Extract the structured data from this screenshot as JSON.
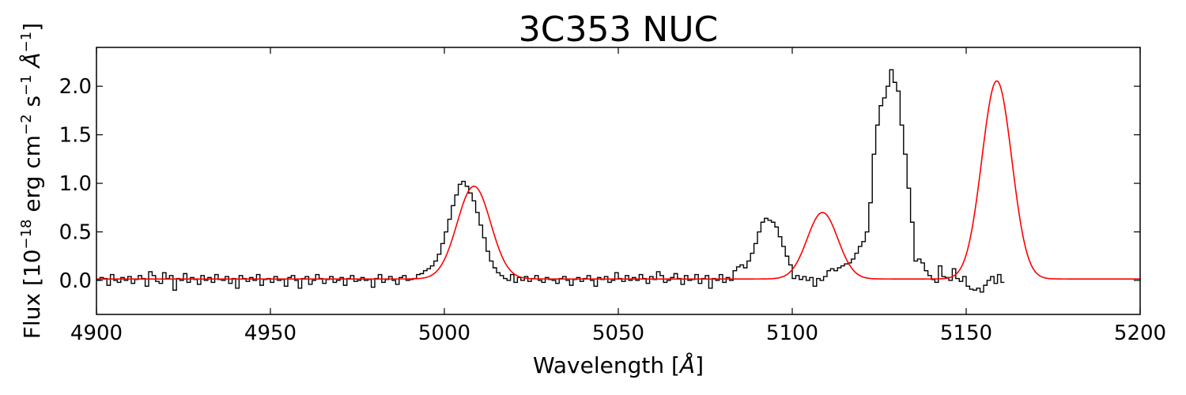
{
  "chart_data": {
    "type": "line",
    "title": "3C353 NUC",
    "xlabel": {
      "pre": "Wavelength [",
      "unit": "Å",
      "post": "]"
    },
    "ylabel": {
      "pre": "Flux [10",
      "exp1": "−18",
      "mid1": " erg cm",
      "exp2": "−2",
      "mid2": " s",
      "exp3": "−1",
      "unit": " Å",
      "exp4": "−1",
      "post": "]"
    },
    "xlim": [
      4900,
      5200
    ],
    "ylim": [
      -0.35,
      2.4
    ],
    "x_ticks": [
      4900,
      4950,
      5000,
      5050,
      5100,
      5150,
      5200
    ],
    "x_tick_labels": [
      "4900",
      "4950",
      "5000",
      "5050",
      "5100",
      "5150",
      "5200"
    ],
    "y_ticks": [
      0.0,
      0.5,
      1.0,
      1.5,
      2.0
    ],
    "y_tick_labels": [
      "0.0",
      "0.5",
      "1.0",
      "1.5",
      "2.0"
    ],
    "grid": false,
    "legend": "none",
    "series": [
      {
        "style": "steps",
        "color": "#000000",
        "x_start": 4900,
        "x_step": 1.0,
        "values": [
          0.01,
          0.03,
          0.02,
          -0.05,
          0.06,
          0.0,
          -0.02,
          0.03,
          0.0,
          0.04,
          -0.03,
          0.01,
          0.05,
          0.02,
          -0.06,
          0.09,
          0.05,
          -0.01,
          -0.03,
          0.08,
          0.02,
          0.05,
          -0.1,
          0.02,
          0.0,
          0.07,
          -0.02,
          0.03,
          0.01,
          -0.04,
          0.05,
          0.0,
          0.03,
          -0.02,
          0.06,
          0.01,
          0.0,
          0.04,
          -0.03,
          0.02,
          -0.08,
          0.05,
          0.02,
          -0.01,
          0.03,
          0.0,
          0.06,
          -0.05,
          0.01,
          0.02,
          -0.02,
          0.04,
          0.0,
          0.01,
          -0.06,
          0.03,
          0.05,
          0.0,
          -0.08,
          0.02,
          0.04,
          -0.04,
          0.0,
          0.06,
          0.02,
          -0.03,
          0.01,
          0.04,
          -0.02,
          0.0,
          0.03,
          -0.05,
          0.02,
          0.05,
          -0.01,
          0.0,
          0.03,
          0.0,
          0.01,
          -0.07,
          0.02,
          0.06,
          -0.02,
          0.01,
          0.04,
          0.0,
          -0.04,
          0.03,
          0.05,
          0.0,
          0.01,
          0.02,
          0.06,
          0.07,
          0.1,
          0.12,
          0.15,
          0.2,
          0.27,
          0.38,
          0.5,
          0.63,
          0.77,
          0.88,
          0.99,
          1.02,
          0.97,
          0.9,
          0.82,
          0.7,
          0.57,
          0.44,
          0.3,
          0.2,
          0.13,
          0.08,
          0.05,
          0.02,
          0.0,
          0.06,
          -0.02,
          0.03,
          0.0,
          0.04,
          -0.01,
          0.02,
          0.05,
          0.0,
          -0.02,
          0.03,
          0.01,
          0.0,
          -0.03,
          0.02,
          0.04,
          0.0,
          -0.05,
          0.01,
          0.03,
          -0.01,
          0.02,
          0.05,
          0.0,
          -0.06,
          0.03,
          0.01,
          0.04,
          -0.02,
          0.0,
          0.08,
          0.02,
          -0.01,
          0.05,
          0.0,
          0.03,
          0.0,
          0.06,
          0.02,
          -0.03,
          0.04,
          0.01,
          0.09,
          0.05,
          -0.02,
          0.0,
          0.03,
          0.07,
          0.02,
          -0.04,
          0.05,
          0.0,
          0.01,
          0.06,
          -0.03,
          0.02,
          0.05,
          -0.08,
          0.02,
          0.0,
          0.06,
          -0.02,
          0.03,
          0.0,
          0.1,
          0.14,
          0.16,
          0.13,
          0.2,
          0.28,
          0.38,
          0.5,
          0.6,
          0.64,
          0.62,
          0.6,
          0.55,
          0.45,
          0.35,
          0.25,
          0.16,
          0.02,
          0.05,
          0.01,
          0.04,
          0.0,
          0.03,
          -0.06,
          0.02,
          0.0,
          0.04,
          0.1,
          0.12,
          0.1,
          0.13,
          0.15,
          0.17,
          0.18,
          0.22,
          0.28,
          0.35,
          0.4,
          0.5,
          0.8,
          1.3,
          1.6,
          1.8,
          1.88,
          2.0,
          2.17,
          2.04,
          1.95,
          1.6,
          1.3,
          0.95,
          0.6,
          0.2,
          0.22,
          0.18,
          0.1,
          0.05,
          0.01,
          -0.02,
          0.15,
          0.04,
          0.03,
          0.0,
          0.12,
          0.02,
          -0.01,
          0.04,
          -0.06,
          -0.09,
          -0.1,
          -0.08,
          -0.12,
          -0.05,
          0.0,
          0.04,
          -0.03,
          0.06,
          -0.02
        ]
      },
      {
        "style": "line",
        "color": "#ff0000",
        "model": {
          "baseline": 0.015,
          "peaks": [
            {
              "center": 5008.5,
              "amplitude": 0.955,
              "sigma": 4.8
            },
            {
              "center": 5108.7,
              "amplitude": 0.685,
              "sigma": 4.4
            },
            {
              "center": 5158.8,
              "amplitude": 2.04,
              "sigma": 4.3
            }
          ]
        }
      }
    ]
  }
}
